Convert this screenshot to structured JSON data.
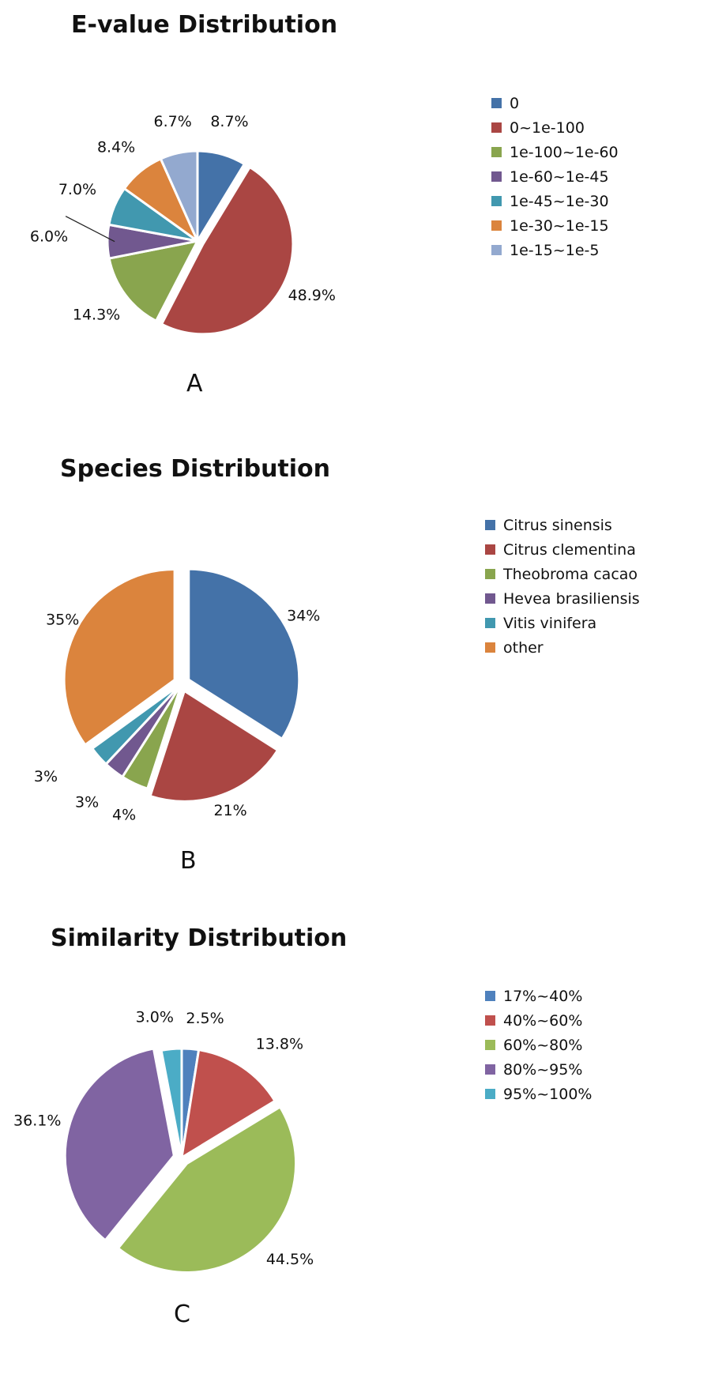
{
  "chart_data": [
    {
      "type": "pie",
      "title": "E-value Distribution",
      "panel_label": "A",
      "categories": [
        "0",
        "0~1e-100",
        "1e-100~1e-60",
        "1e-60~1e-45",
        "1e-45~1e-30",
        "1e-30~1e-15",
        "1e-15~1e-5"
      ],
      "values": [
        8.7,
        48.9,
        14.3,
        6.0,
        7.0,
        8.4,
        6.7
      ],
      "labels": [
        "8.7%",
        "48.9%",
        "14.3%",
        "6.0%",
        "7.0%",
        "8.4%",
        "6.7%"
      ],
      "colors": [
        "#4472A8",
        "#AA4643",
        "#89A54E",
        "#71588F",
        "#4198AF",
        "#DB843D",
        "#93A9CF"
      ],
      "exploded": [
        false,
        true,
        false,
        false,
        false,
        false,
        false
      ],
      "legend_position": "right"
    },
    {
      "type": "pie",
      "title": "Species Distribution",
      "panel_label": "B",
      "categories": [
        "Citrus sinensis",
        "Citrus clementina",
        "Theobroma cacao",
        "Hevea brasiliensis",
        "Vitis vinifera",
        "other"
      ],
      "values": [
        34,
        21,
        4,
        3,
        3,
        35
      ],
      "labels": [
        "34%",
        "21%",
        "4%",
        "3%",
        "3%",
        "35%"
      ],
      "colors": [
        "#4472A8",
        "#AA4643",
        "#89A54E",
        "#71588F",
        "#4198AF",
        "#DB843D"
      ],
      "exploded": [
        true,
        true,
        false,
        false,
        false,
        true
      ],
      "legend_position": "right"
    },
    {
      "type": "pie",
      "title": "Similarity Distribution",
      "panel_label": "C",
      "categories": [
        "17%~40%",
        "40%~60%",
        "60%~80%",
        "80%~95%",
        "95%~100%"
      ],
      "values": [
        2.5,
        13.8,
        44.5,
        36.1,
        3.0
      ],
      "labels": [
        "2.5%",
        "13.8%",
        "44.5%",
        "36.1%",
        "3.0%"
      ],
      "colors": [
        "#4F81BD",
        "#C0504D",
        "#9BBB59",
        "#8064A2",
        "#4BACC6"
      ],
      "exploded": [
        false,
        false,
        true,
        true,
        false
      ],
      "legend_position": "right"
    }
  ]
}
